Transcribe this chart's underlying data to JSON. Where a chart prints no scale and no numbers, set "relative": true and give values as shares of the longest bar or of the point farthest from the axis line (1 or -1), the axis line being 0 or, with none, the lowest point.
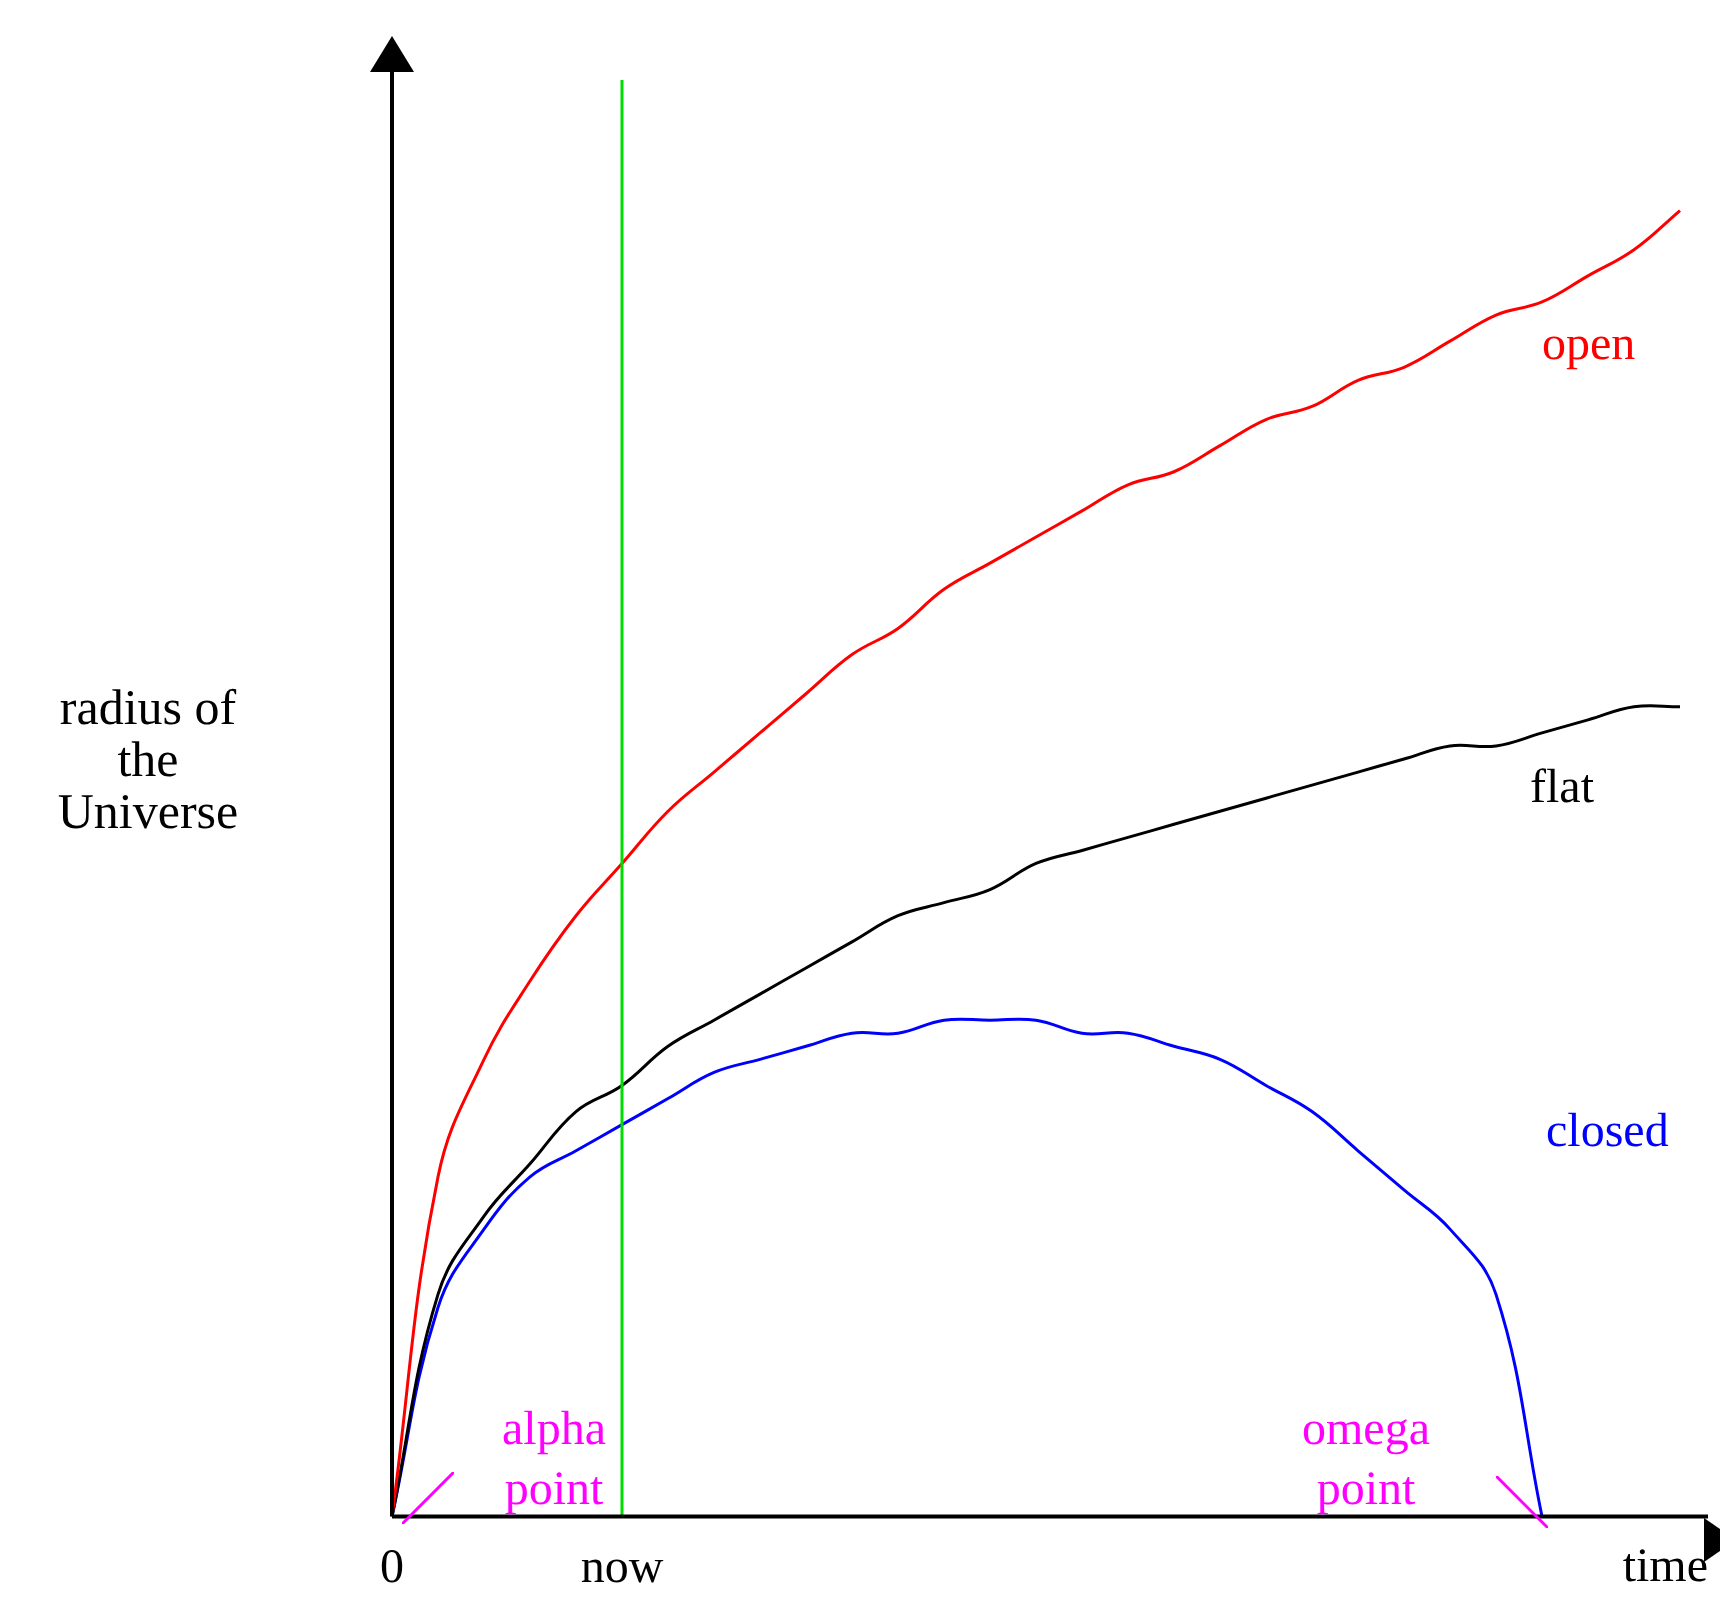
{
  "chart_data": {
    "type": "line",
    "relative": true,
    "ylabel": "radius of the Universe",
    "xlabel": "time",
    "categories": [
      "0",
      null,
      null,
      null,
      null,
      "now",
      null,
      null,
      null,
      null,
      null,
      null,
      null,
      null,
      null,
      null,
      null,
      null,
      null,
      null,
      null,
      null,
      null,
      null,
      null,
      null,
      null,
      null,
      null
    ],
    "series": [
      {
        "name": "open",
        "color": "#ff0000",
        "values": [
          0,
          0.26,
          0.35,
          0.41,
          0.46,
          0.5,
          0.54,
          0.57,
          0.6,
          0.63,
          0.66,
          0.68,
          0.71,
          0.73,
          0.75,
          0.77,
          0.79,
          0.8,
          0.82,
          0.84,
          0.85,
          0.87,
          0.88,
          0.9,
          0.92,
          0.93,
          0.95,
          0.97,
          1
        ]
      },
      {
        "name": "flat",
        "color": "#000000",
        "values": [
          0,
          0.17,
          0.23,
          0.27,
          0.31,
          0.33,
          0.36,
          0.38,
          0.4,
          0.42,
          0.44,
          0.46,
          0.47,
          0.48,
          0.5,
          0.51,
          0.52,
          0.53,
          0.54,
          0.55,
          0.56,
          0.57,
          0.58,
          0.59,
          0.59,
          0.6,
          0.61,
          0.62,
          0.62
        ]
      },
      {
        "name": "closed",
        "color": "#0000ff",
        "values": [
          0,
          0.16,
          0.22,
          0.26,
          0.28,
          0.3,
          0.32,
          0.34,
          0.35,
          0.36,
          0.37,
          0.37,
          0.38,
          0.38,
          0.38,
          0.37,
          0.37,
          0.36,
          0.35,
          0.33,
          0.31,
          0.28,
          0.25,
          0.22,
          0.17,
          0,
          null,
          null,
          null
        ]
      }
    ],
    "ref_lines": [
      {
        "axis": "x",
        "value": "now",
        "color": "#00dd00"
      }
    ],
    "annotations": [
      "alpha point",
      "omega point"
    ],
    "marker": "none",
    "line_style": "solid",
    "tick_labels": "x"
  }
}
